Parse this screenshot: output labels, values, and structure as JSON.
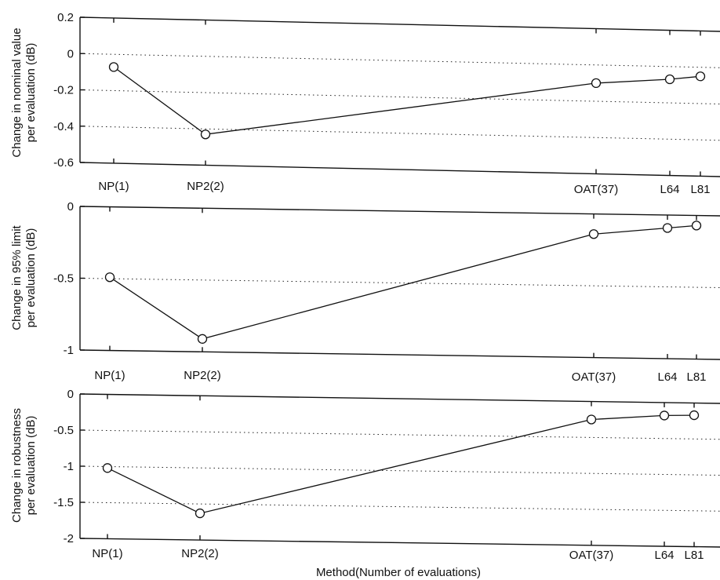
{
  "chart_data": [
    {
      "type": "line",
      "categories": [
        "NP(1)",
        "NP2(2)",
        "OAT(37)",
        "L64",
        "L81"
      ],
      "x": [
        1,
        2,
        37,
        64,
        81
      ],
      "series": [
        {
          "values": [
            -0.07,
            -0.43,
            -0.1,
            -0.07,
            -0.05
          ]
        }
      ],
      "ylabel_lines": [
        "Change in nominal value",
        "per evaluation (dB)"
      ],
      "ylim": [
        -0.6,
        0.2
      ],
      "yticks": [
        0.2,
        0,
        -0.2,
        -0.4,
        -0.6
      ],
      "ytick_labels": [
        "0.2",
        "0",
        "-0.2",
        "-0.4",
        "-0.6"
      ],
      "grid_y": [
        0,
        -0.2,
        -0.4
      ],
      "xlabel": ""
    },
    {
      "type": "line",
      "categories": [
        "NP(1)",
        "NP2(2)",
        "OAT(37)",
        "L64",
        "L81"
      ],
      "x": [
        1,
        2,
        37,
        64,
        81
      ],
      "series": [
        {
          "values": [
            -0.49,
            -0.91,
            -0.14,
            -0.09,
            -0.07
          ]
        }
      ],
      "ylabel_lines": [
        "Change in 95% limit",
        "per evaluation (dB)"
      ],
      "ylim": [
        -1,
        0
      ],
      "yticks": [
        0,
        -0.5,
        -1
      ],
      "ytick_labels": [
        "0",
        "-0.5",
        "-1"
      ],
      "grid_y": [
        -0.5
      ],
      "xlabel": ""
    },
    {
      "type": "line",
      "categories": [
        "NP(1)",
        "NP2(2)",
        "OAT(37)",
        "L64",
        "L81"
      ],
      "x": [
        1,
        2,
        37,
        64,
        81
      ],
      "series": [
        {
          "values": [
            -1.02,
            -1.63,
            -0.25,
            -0.18,
            -0.17
          ]
        }
      ],
      "ylabel_lines": [
        "Change in robustness",
        "per evaluation (dB)"
      ],
      "ylim": [
        -2,
        0
      ],
      "yticks": [
        0,
        -0.5,
        -1,
        -1.5,
        -2
      ],
      "ytick_labels": [
        "0",
        "-0.5",
        "-1",
        "-1.5",
        "-2"
      ],
      "grid_y": [
        -0.5,
        -1,
        -1.5
      ],
      "xlabel": "Method(Number of evaluations)"
    }
  ]
}
